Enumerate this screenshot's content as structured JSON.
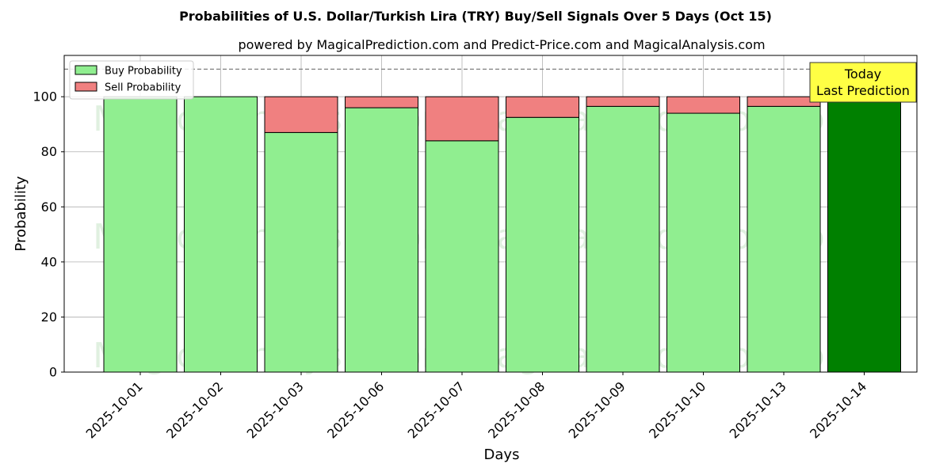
{
  "chart_data": {
    "type": "bar",
    "stacked": true,
    "title": "Probabilities of U.S. Dollar/Turkish Lira (TRY) Buy/Sell Signals Over 5 Days (Oct 15)",
    "subtitle": "powered by MagicalPrediction.com and Predict-Price.com and MagicalAnalysis.com",
    "xlabel": "Days",
    "ylabel": "Probability",
    "ylim": [
      0,
      115
    ],
    "yticks": [
      0,
      20,
      40,
      60,
      80,
      100
    ],
    "reference_line": 110,
    "grid": true,
    "legend_position": "top-left",
    "categories": [
      "2025-10-01",
      "2025-10-02",
      "2025-10-03",
      "2025-10-06",
      "2025-10-07",
      "2025-10-08",
      "2025-10-09",
      "2025-10-10",
      "2025-10-13",
      "2025-10-14"
    ],
    "series": [
      {
        "name": "Buy Probability",
        "color": "#90ee90",
        "highlight_color": "#008000",
        "values": [
          100,
          100,
          87,
          96,
          84,
          92.5,
          96.5,
          94,
          96.5,
          100
        ]
      },
      {
        "name": "Sell Probability",
        "color": "#f08080",
        "values": [
          0,
          0,
          13,
          4,
          16,
          7.5,
          3.5,
          6,
          3.5,
          0
        ]
      }
    ],
    "annotation": {
      "lines": [
        "Today",
        "Last Prediction"
      ],
      "background": "#ffff44"
    },
    "watermarks": [
      "MagicalAnalysis.com",
      "MagicalPrediction.com"
    ]
  }
}
